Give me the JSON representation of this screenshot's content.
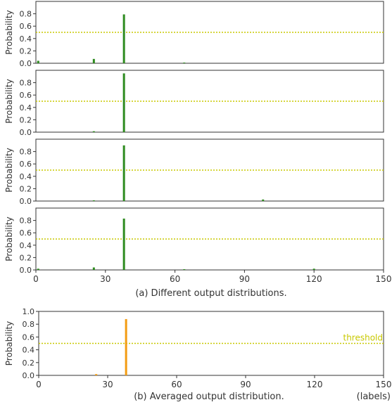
{
  "colors": {
    "green": "#2e8b1f",
    "orange": "#f39c12",
    "threshold": "#c8c800",
    "axis": "#333333"
  },
  "chart_data": [
    {
      "type": "bar",
      "ylabel": "Probability",
      "xlim": [
        0,
        150
      ],
      "ylim": [
        0,
        1.0
      ],
      "yticks": [
        "0.0",
        "0.2",
        "0.4",
        "0.6",
        "0.8"
      ],
      "xticks": [],
      "threshold": 0.5,
      "bars": [
        {
          "x": 1,
          "y": 0.04
        },
        {
          "x": 25,
          "y": 0.07
        },
        {
          "x": 38,
          "y": 0.79
        },
        {
          "x": 64,
          "y": 0.01
        }
      ],
      "color": "green"
    },
    {
      "type": "bar",
      "ylabel": "Probability",
      "xlim": [
        0,
        150
      ],
      "ylim": [
        0,
        1.0
      ],
      "yticks": [
        "0.0",
        "0.2",
        "0.4",
        "0.6",
        "0.8"
      ],
      "xticks": [],
      "threshold": 0.5,
      "bars": [
        {
          "x": 25,
          "y": 0.015
        },
        {
          "x": 38,
          "y": 0.95
        }
      ],
      "color": "green"
    },
    {
      "type": "bar",
      "ylabel": "Probability",
      "xlim": [
        0,
        150
      ],
      "ylim": [
        0,
        1.0
      ],
      "yticks": [
        "0.0",
        "0.2",
        "0.4",
        "0.6",
        "0.8"
      ],
      "xticks": [],
      "threshold": 0.5,
      "bars": [
        {
          "x": 25,
          "y": 0.01
        },
        {
          "x": 38,
          "y": 0.9
        },
        {
          "x": 98,
          "y": 0.025
        }
      ],
      "color": "green"
    },
    {
      "type": "bar",
      "ylabel": "Probability",
      "xlim": [
        0,
        150
      ],
      "ylim": [
        0,
        1.0
      ],
      "yticks": [
        "0.0",
        "0.2",
        "0.4",
        "0.6",
        "0.8"
      ],
      "xticks": [
        "0",
        "30",
        "60",
        "90",
        "120",
        "150"
      ],
      "threshold": 0.5,
      "bars": [
        {
          "x": 1,
          "y": 0.02
        },
        {
          "x": 25,
          "y": 0.04
        },
        {
          "x": 38,
          "y": 0.83
        },
        {
          "x": 64,
          "y": 0.01
        },
        {
          "x": 120,
          "y": 0.02
        }
      ],
      "color": "green"
    },
    {
      "type": "bar",
      "ylabel": "Probability",
      "xlim": [
        0,
        150
      ],
      "ylim": [
        0,
        1.0
      ],
      "yticks": [
        "0.0",
        "0.2",
        "0.4",
        "0.6",
        "0.8",
        "1.0"
      ],
      "xticks": [
        "0",
        "30",
        "60",
        "90",
        "120",
        "150"
      ],
      "threshold": 0.5,
      "threshold_label": "threshold",
      "xlabel": "(labels)",
      "bars": [
        {
          "x": 25,
          "y": 0.02
        },
        {
          "x": 38,
          "y": 0.88
        }
      ],
      "color": "orange"
    }
  ],
  "captions": {
    "a": "(a) Different output distributions.",
    "b": "(b) Averaged output distribution."
  }
}
